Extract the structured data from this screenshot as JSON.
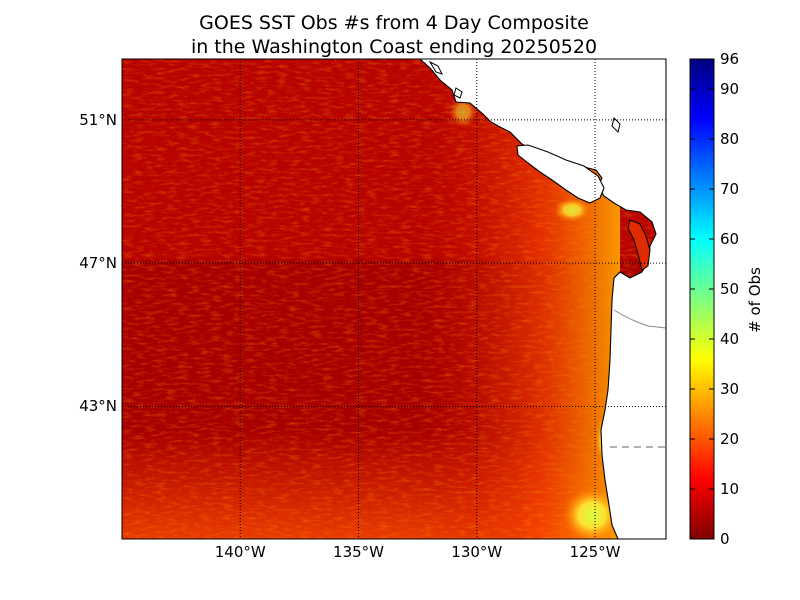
{
  "title_line1": "GOES SST Obs #s from 4 Day Composite",
  "title_line2": "in the Washington Coast ending 20250520",
  "map": {
    "lon_range": [
      -145,
      -122
    ],
    "lat_range": [
      39.3,
      52.7
    ],
    "lat_ticks": [
      {
        "value": 51,
        "label": "51°N"
      },
      {
        "value": 47,
        "label": "47°N"
      },
      {
        "value": 43,
        "label": "43°N"
      }
    ],
    "lon_ticks": [
      {
        "value": -140,
        "label": "140°W"
      },
      {
        "value": -135,
        "label": "135°W"
      },
      {
        "value": -130,
        "label": "130°W"
      },
      {
        "value": -125,
        "label": "125°W"
      }
    ],
    "grid": true
  },
  "colorbar": {
    "label": "# of Obs",
    "range": [
      0,
      96
    ],
    "ticks": [
      {
        "value": 96,
        "label": "96"
      },
      {
        "value": 90,
        "label": "90"
      },
      {
        "value": 80,
        "label": "80"
      },
      {
        "value": 70,
        "label": "70"
      },
      {
        "value": 60,
        "label": "60"
      },
      {
        "value": 50,
        "label": "50"
      },
      {
        "value": 40,
        "label": "40"
      },
      {
        "value": 30,
        "label": "30"
      },
      {
        "value": 20,
        "label": "20"
      },
      {
        "value": 10,
        "label": "10"
      },
      {
        "value": 0,
        "label": "0"
      }
    ],
    "colormap": [
      "#7f0000",
      "#ff0000",
      "#ff7f00",
      "#ffff00",
      "#7fff7f",
      "#00ffff",
      "#007fff",
      "#0000ff",
      "#00007f"
    ]
  },
  "colors": {
    "ocean_dark": "#a50000",
    "ocean_mid": "#cc0c00",
    "ocean_bright": "#ff5a00",
    "nearshore_high": "#ffe23a",
    "land": "#ffffff",
    "coastline": "#000000",
    "grid": "#000000"
  }
}
